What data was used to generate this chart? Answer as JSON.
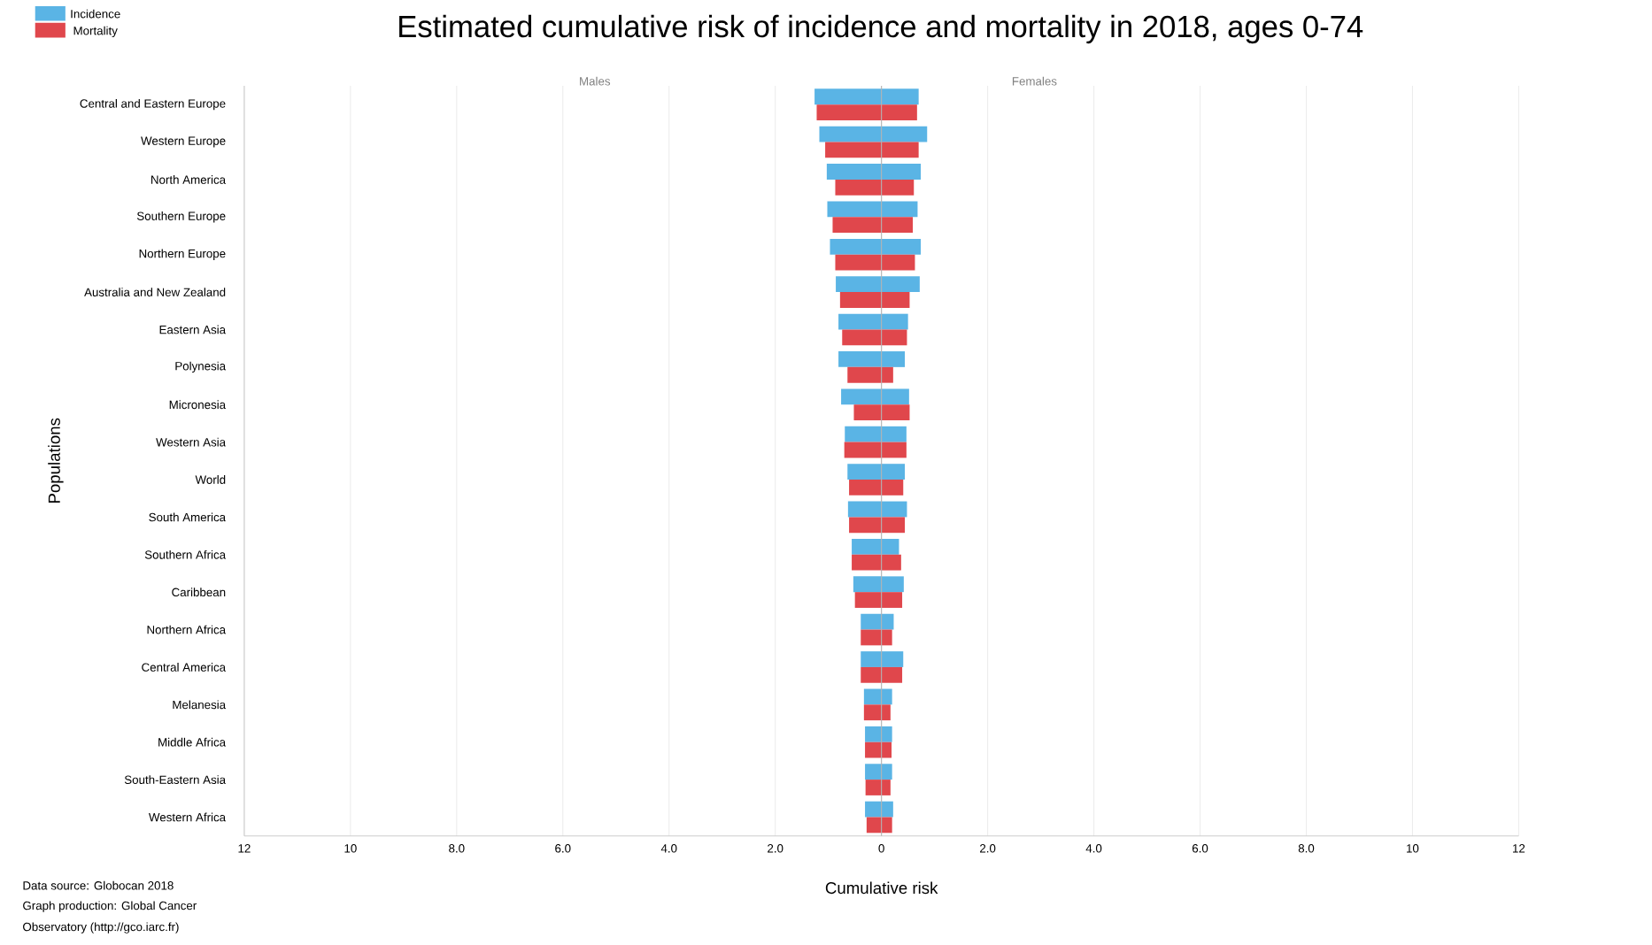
{
  "chart_data": [
    {
      "type": "bar",
      "orientation": "horizontal",
      "title": "Estimated cumulative risk of incidence and mortality in 2018, ages 0-74",
      "subtitle": "Males",
      "xlabel": "Cumulative risk",
      "ylabel": "Populations",
      "annotations": [
        "Data source: Globocan 2018",
        "Graph production: Global Cancer",
        "Observatory (http://gco.iarc.fr)"
      ],
      "categories": [
        "Central and Eastern Europe",
        "Western Europe",
        "North America",
        "Southern Europe",
        "Northern Europe",
        "Australia and New Zealand",
        "Eastern Asia",
        "Polynesia",
        "Micronesia",
        "Western Asia",
        "World",
        "South America",
        "Southern Africa",
        "Caribbean",
        "Northern Africa",
        "Central America",
        "Melanesia",
        "Middle Africa",
        "South-Eastern Asia",
        "Western Africa"
      ],
      "series": [
        {
          "name": "Incidence",
          "color": "#5ab4e5",
          "values": [
            1.26,
            1.17,
            1.03,
            1.02,
            0.97,
            0.86,
            0.81,
            0.81,
            0.76,
            0.69,
            0.64,
            0.63,
            0.56,
            0.53,
            0.39,
            0.39,
            0.33,
            0.31,
            0.31,
            0.31
          ]
        },
        {
          "name": "Mortality",
          "color": "#e0474c",
          "values": [
            1.22,
            1.06,
            0.87,
            0.92,
            0.87,
            0.78,
            0.74,
            0.64,
            0.52,
            0.7,
            0.61,
            0.61,
            0.56,
            0.5,
            0.39,
            0.39,
            0.33,
            0.31,
            0.3,
            0.28
          ]
        }
      ],
      "xlim": [
        12,
        0
      ],
      "xticks": [
        12,
        10,
        {
          "value": 8,
          "label": "8.0"
        },
        {
          "value": 6,
          "label": "6.0"
        },
        {
          "value": 4,
          "label": "4.0"
        },
        {
          "value": 2,
          "label": "2.0"
        },
        0
      ],
      "grid": "x",
      "legend": "top left"
    },
    {
      "type": "bar",
      "orientation": "horizontal",
      "title": "Females",
      "categories": [
        null,
        null,
        null,
        null,
        null,
        null,
        null,
        null,
        null,
        null,
        null,
        null,
        null,
        null,
        null,
        null,
        null,
        null,
        null,
        null
      ],
      "series": [
        {
          "color": "#5ab4e5",
          "values": [
            0.7,
            0.86,
            0.74,
            0.68,
            0.74,
            0.72,
            0.5,
            0.44,
            0.52,
            0.47,
            0.44,
            0.48,
            0.33,
            0.42,
            0.23,
            0.41,
            0.2,
            0.2,
            0.2,
            0.22
          ]
        },
        {
          "color": "#e0474c",
          "values": [
            0.67,
            0.7,
            0.61,
            0.59,
            0.63,
            0.53,
            0.48,
            0.22,
            0.53,
            0.47,
            0.41,
            0.44,
            0.37,
            0.39,
            0.2,
            0.39,
            0.17,
            0.19,
            0.17,
            0.2
          ]
        }
      ],
      "xlim": [
        0,
        12
      ],
      "xticks": [
        {
          "value": 2,
          "label": "2.0"
        },
        {
          "value": 4,
          "label": "4.0"
        },
        {
          "value": 6,
          "label": "6.0"
        },
        {
          "value": 8,
          "label": "8.0"
        },
        10,
        12
      ],
      "grid": "x"
    }
  ]
}
